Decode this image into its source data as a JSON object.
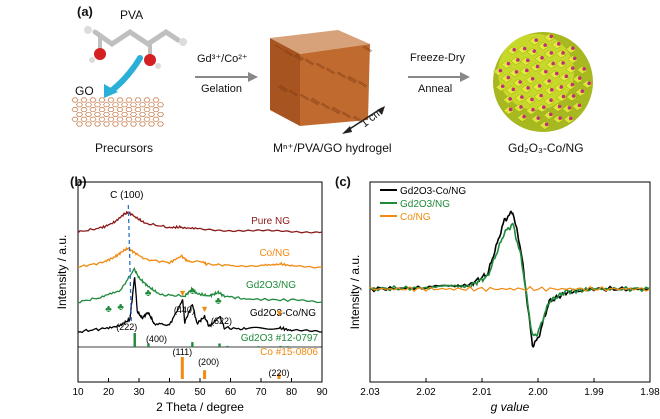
{
  "panel_a": {
    "label": "(a)",
    "pva": "PVA",
    "go": "GO",
    "precursors": "Precursors",
    "arrow1_top": "Gd³⁺/Co²⁺",
    "arrow1_bottom": "Gelation",
    "scale": "1 cm",
    "hydrogel": "Mⁿ⁺/PVA/GO hydrogel",
    "arrow2_top": "Freeze-Dry",
    "arrow2_bottom": "Anneal",
    "product": "Gd₂O₃-Co/NG",
    "colors": {
      "molecule": "#bfbfbf",
      "oxygen": "#d42020",
      "arrow_curve": "#2ab0d8",
      "graphene": "#c87a4a",
      "cube": "#b0602a",
      "sphere": "#c8d82a",
      "dots": "#c0307a"
    }
  },
  "panel_b": {
    "label": "(b)",
    "chart_data": {
      "type": "line",
      "xlabel": "2 Theta / degree",
      "ylabel": "Intensity / a.u.",
      "xlim": [
        10,
        90
      ],
      "x_ticks": [
        "10",
        "20",
        "30",
        "40",
        "50",
        "60",
        "70",
        "80",
        "90"
      ],
      "annotation": "C (100)",
      "series": [
        {
          "name": "Pure NG",
          "color": "#8b1a1a",
          "points": [
            [
              10,
              0.0
            ],
            [
              18,
              0.08
            ],
            [
              22,
              0.18
            ],
            [
              25,
              0.32
            ],
            [
              26.5,
              0.36
            ],
            [
              28,
              0.3
            ],
            [
              32,
              0.16
            ],
            [
              40,
              0.08
            ],
            [
              44,
              0.09
            ],
            [
              50,
              0.05
            ],
            [
              60,
              0.03
            ],
            [
              70,
              0.02
            ],
            [
              80,
              0.01
            ],
            [
              90,
              0.0
            ]
          ]
        },
        {
          "name": "Co/NG",
          "color": "#f08a10",
          "points": [
            [
              10,
              0.0
            ],
            [
              18,
              0.08
            ],
            [
              22,
              0.18
            ],
            [
              25,
              0.3
            ],
            [
              26.5,
              0.34
            ],
            [
              28,
              0.28
            ],
            [
              32,
              0.14
            ],
            [
              40,
              0.08
            ],
            [
              44,
              0.2
            ],
            [
              46,
              0.1
            ],
            [
              51,
              0.1
            ],
            [
              52,
              0.05
            ],
            [
              60,
              0.03
            ],
            [
              70,
              0.02
            ],
            [
              76,
              0.06
            ],
            [
              80,
              0.02
            ],
            [
              90,
              0.0
            ]
          ]
        },
        {
          "name": "Gd2O3/NG",
          "color": "#1e8a3a",
          "points": [
            [
              10,
              0.0
            ],
            [
              18,
              0.08
            ],
            [
              24,
              0.2
            ],
            [
              28.5,
              0.55
            ],
            [
              30,
              0.4
            ],
            [
              33,
              0.26
            ],
            [
              37,
              0.12
            ],
            [
              45,
              0.1
            ],
            [
              47.5,
              0.22
            ],
            [
              49,
              0.14
            ],
            [
              53,
              0.1
            ],
            [
              56,
              0.16
            ],
            [
              58,
              0.1
            ],
            [
              65,
              0.05
            ],
            [
              80,
              0.03
            ],
            [
              90,
              0.0
            ]
          ]
        },
        {
          "name": "Gd2O3-Co/NG",
          "color": "#000000",
          "points": [
            [
              10,
              0.0
            ],
            [
              18,
              0.05
            ],
            [
              24,
              0.1
            ],
            [
              27,
              0.18
            ],
            [
              28.6,
              0.8
            ],
            [
              29.4,
              0.3
            ],
            [
              31,
              0.2
            ],
            [
              33,
              0.28
            ],
            [
              35,
              0.12
            ],
            [
              40,
              0.1
            ],
            [
              44.3,
              0.46
            ],
            [
              45,
              0.14
            ],
            [
              47.5,
              0.4
            ],
            [
              49,
              0.12
            ],
            [
              51.5,
              0.22
            ],
            [
              53,
              0.08
            ],
            [
              56.5,
              0.22
            ],
            [
              58,
              0.06
            ],
            [
              65,
              0.04
            ],
            [
              76,
              0.06
            ],
            [
              80,
              0.02
            ],
            [
              90,
              0.0
            ]
          ]
        }
      ],
      "references": [
        {
          "name": "Gd2O3 #12-0797",
          "color": "#1e8a3a",
          "peaks": [
            [
              28.6,
              1.0
            ],
            [
              33.1,
              0.25
            ],
            [
              47.5,
              0.35
            ],
            [
              56.4,
              0.25
            ],
            [
              59.0,
              0.08
            ],
            [
              69.1,
              0.06
            ],
            [
              76.4,
              0.08
            ],
            [
              78.8,
              0.06
            ]
          ]
        },
        {
          "name": "Co #15-0806",
          "color": "#f08a10",
          "peaks": [
            [
              44.2,
              1.0
            ],
            [
              51.5,
              0.4
            ],
            [
              75.9,
              0.25
            ]
          ]
        }
      ],
      "peak_labels": [
        {
          "text": "(222)",
          "x": 28.6
        },
        {
          "text": "(400)",
          "x": 33.1
        },
        {
          "text": "(440)",
          "x": 47.5
        },
        {
          "text": "(622)",
          "x": 56.4
        },
        {
          "text": "(111)",
          "x": 44.2
        },
        {
          "text": "(200)",
          "x": 51.5
        },
        {
          "text": "(220)",
          "x": 75.9
        }
      ]
    }
  },
  "panel_c": {
    "label": "(c)",
    "chart_data": {
      "type": "line",
      "xlabel": "g value",
      "ylabel": "Intensity / a.u.",
      "xlim": [
        2.03,
        1.98
      ],
      "x_ticks": [
        "2.03",
        "2.02",
        "2.01",
        "2.00",
        "1.99",
        "1.98"
      ],
      "legend_position": "top-left",
      "series": [
        {
          "name": "Gd2O3-Co/NG",
          "color": "#000000",
          "points": [
            [
              2.03,
              0.0
            ],
            [
              2.02,
              0.01
            ],
            [
              2.012,
              0.04
            ],
            [
              2.009,
              0.12
            ],
            [
              2.006,
              0.55
            ],
            [
              2.0045,
              0.62
            ],
            [
              2.003,
              0.3
            ],
            [
              2.001,
              -0.45
            ],
            [
              2.0,
              -0.4
            ],
            [
              1.998,
              -0.1
            ],
            [
              1.995,
              -0.03
            ],
            [
              1.99,
              0.0
            ],
            [
              1.98,
              0.0
            ]
          ]
        },
        {
          "name": "Gd2O3/NG",
          "color": "#1e8a3a",
          "points": [
            [
              2.03,
              0.0
            ],
            [
              2.02,
              0.01
            ],
            [
              2.012,
              0.03
            ],
            [
              2.009,
              0.1
            ],
            [
              2.006,
              0.45
            ],
            [
              2.0045,
              0.52
            ],
            [
              2.003,
              0.25
            ],
            [
              2.001,
              -0.38
            ],
            [
              2.0,
              -0.35
            ],
            [
              1.998,
              -0.1
            ],
            [
              1.995,
              -0.02
            ],
            [
              1.99,
              0.0
            ],
            [
              1.98,
              0.0
            ]
          ]
        },
        {
          "name": "Co/NG",
          "color": "#f08a10",
          "points": [
            [
              2.03,
              0.0
            ],
            [
              2.02,
              0.0
            ],
            [
              2.01,
              0.0
            ],
            [
              2.0,
              0.0
            ],
            [
              1.99,
              0.0
            ],
            [
              1.98,
              0.0
            ]
          ]
        }
      ]
    }
  }
}
